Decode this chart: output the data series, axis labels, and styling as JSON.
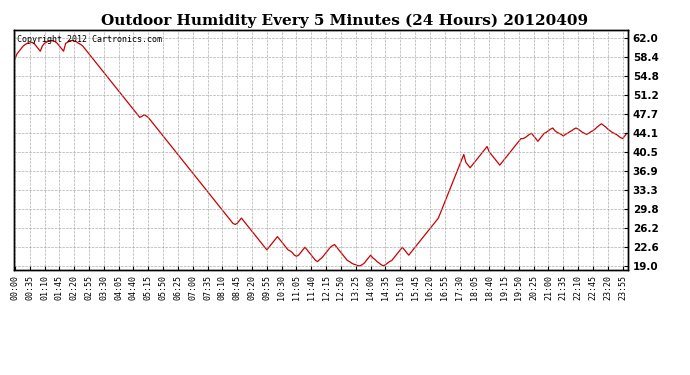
{
  "title": "Outdoor Humidity Every 5 Minutes (24 Hours) 20120409",
  "copyright_text": "Copyright 2012 Cartronics.com",
  "line_color": "#cc0000",
  "background_color": "#ffffff",
  "grid_color": "#999999",
  "yticks": [
    19.0,
    22.6,
    26.2,
    29.8,
    33.3,
    36.9,
    40.5,
    44.1,
    47.7,
    51.2,
    54.8,
    58.4,
    62.0
  ],
  "ylim": [
    18.2,
    63.5
  ],
  "title_fontsize": 11,
  "tick_fontsize": 6,
  "humidity_data": [
    58.0,
    59.0,
    59.5,
    60.0,
    60.5,
    60.8,
    61.0,
    61.0,
    61.2,
    61.0,
    60.5,
    60.0,
    59.5,
    60.5,
    61.0,
    61.2,
    61.5,
    61.5,
    61.5,
    61.3,
    61.0,
    60.5,
    60.0,
    59.5,
    61.0,
    61.2,
    61.5,
    61.5,
    61.5,
    61.3,
    61.0,
    60.8,
    60.5,
    60.0,
    59.5,
    59.0,
    58.5,
    58.0,
    57.5,
    57.0,
    56.5,
    56.0,
    55.5,
    55.0,
    54.5,
    54.0,
    53.5,
    53.0,
    52.5,
    52.0,
    51.5,
    51.0,
    50.5,
    50.0,
    49.5,
    49.0,
    48.5,
    48.0,
    47.5,
    47.0,
    47.2,
    47.5,
    47.3,
    47.0,
    46.5,
    46.0,
    45.5,
    45.0,
    44.5,
    44.0,
    43.5,
    43.0,
    42.5,
    42.0,
    41.5,
    41.0,
    40.5,
    40.0,
    39.5,
    39.0,
    38.5,
    38.0,
    37.5,
    37.0,
    36.5,
    36.0,
    35.5,
    35.0,
    34.5,
    34.0,
    33.5,
    33.0,
    32.5,
    32.0,
    31.5,
    31.0,
    30.5,
    30.0,
    29.5,
    29.0,
    28.5,
    28.0,
    27.5,
    27.0,
    26.8,
    27.0,
    27.5,
    28.0,
    27.5,
    27.0,
    26.5,
    26.0,
    25.5,
    25.0,
    24.5,
    24.0,
    23.5,
    23.0,
    22.5,
    22.0,
    22.5,
    23.0,
    23.5,
    24.0,
    24.5,
    24.0,
    23.5,
    23.0,
    22.5,
    22.0,
    21.8,
    21.5,
    21.0,
    20.8,
    21.0,
    21.5,
    22.0,
    22.5,
    22.0,
    21.5,
    21.0,
    20.5,
    20.0,
    19.8,
    20.2,
    20.5,
    21.0,
    21.5,
    22.0,
    22.5,
    22.8,
    23.0,
    22.5,
    22.0,
    21.5,
    21.0,
    20.5,
    20.0,
    19.8,
    19.5,
    19.3,
    19.2,
    19.0,
    19.0,
    19.2,
    19.5,
    20.0,
    20.5,
    21.0,
    20.5,
    20.2,
    19.8,
    19.5,
    19.2,
    19.0,
    19.2,
    19.5,
    19.8,
    20.0,
    20.5,
    21.0,
    21.5,
    22.0,
    22.5,
    22.0,
    21.5,
    21.0,
    21.5,
    22.0,
    22.5,
    23.0,
    23.5,
    24.0,
    24.5,
    25.0,
    25.5,
    26.0,
    26.5,
    27.0,
    27.5,
    28.0,
    29.0,
    30.0,
    31.0,
    32.0,
    33.0,
    34.0,
    35.0,
    36.0,
    37.0,
    38.0,
    39.0,
    40.0,
    38.5,
    38.0,
    37.5,
    38.0,
    38.5,
    39.0,
    39.5,
    40.0,
    40.5,
    41.0,
    41.5,
    40.5,
    40.0,
    39.5,
    39.0,
    38.5,
    38.0,
    38.5,
    39.0,
    39.5,
    40.0,
    40.5,
    41.0,
    41.5,
    42.0,
    42.5,
    43.0,
    43.0,
    43.2,
    43.5,
    43.8,
    44.0,
    43.5,
    43.0,
    42.5,
    43.0,
    43.5,
    44.0,
    44.2,
    44.5,
    44.8,
    45.0,
    44.5,
    44.2,
    44.0,
    43.8,
    43.5,
    43.8,
    44.0,
    44.3,
    44.5,
    44.8,
    45.0,
    44.8,
    44.5,
    44.2,
    44.0,
    43.8,
    44.0,
    44.3,
    44.5,
    44.8,
    45.2,
    45.5,
    45.8,
    45.5,
    45.2,
    44.8,
    44.5,
    44.2,
    44.0,
    43.8,
    43.5,
    43.2,
    43.0,
    43.5,
    44.0
  ]
}
